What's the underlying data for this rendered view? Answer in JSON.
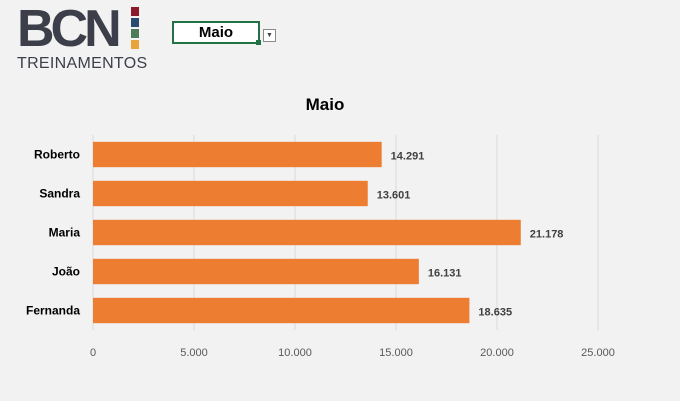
{
  "logo": {
    "main_text": "BCN",
    "sub_text": "TREINAMENTOS",
    "square_colors": [
      "#8b1a2b",
      "#2b4a6f",
      "#4e7c59",
      "#e8a33a"
    ]
  },
  "selector": {
    "selected_value": "Maio"
  },
  "colors": {
    "bar": "#ed7d31",
    "gridline": "#d9d9d9",
    "axis_text": "#595959",
    "data_label": "#404040",
    "accent_excel": "#217346"
  },
  "chart_data": {
    "type": "bar",
    "orientation": "horizontal",
    "title": "Maio",
    "categories": [
      "Roberto",
      "Sandra",
      "Maria",
      "João",
      "Fernanda"
    ],
    "values": [
      14291,
      13601,
      21178,
      16131,
      18635
    ],
    "data_labels": [
      "14.291",
      "13.601",
      "21.178",
      "16.131",
      "18.635"
    ],
    "xlim": [
      0,
      25000
    ],
    "x_ticks": [
      0,
      5000,
      10000,
      15000,
      20000,
      25000
    ],
    "x_tick_labels": [
      "0",
      "5.000",
      "10.000",
      "15.000",
      "20.000",
      "25.000"
    ],
    "grid": true,
    "legend": "none"
  }
}
